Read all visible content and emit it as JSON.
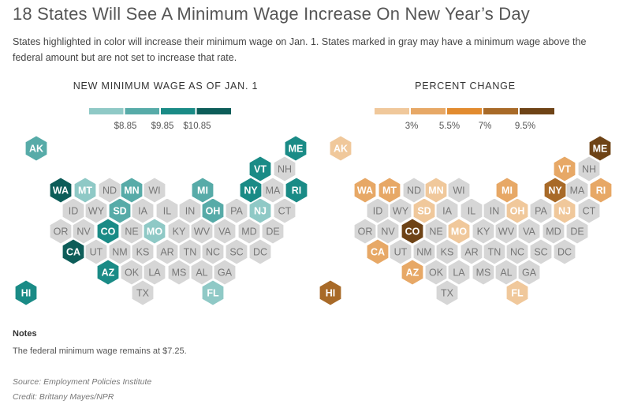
{
  "title": "18 States Will See A Minimum Wage Increase On New Year’s Day",
  "subtitle": "States highlighted in color will increase their minimum wage on Jan. 1. States marked in gray may have a minimum wage above the federal amount but are not set to increase that rate.",
  "notes_heading": "Notes",
  "notes_text": "The federal minimum wage remains at $7.25.",
  "source": "Source: Employment Policies Institute",
  "credit": "Credit: Brittany Mayes/NPR",
  "colors": {
    "no_change": "#d6d6d6",
    "no_change_text": "#777777",
    "wage_scale": [
      "#8fc9c6",
      "#57aba8",
      "#1a8b86",
      "#0d5d59"
    ],
    "pct_scale": [
      "#f0c89b",
      "#e7a866",
      "#e28b2f",
      "#a86a28",
      "#6e4316"
    ]
  },
  "chart_data": [
    {
      "type": "heatmap",
      "title": "NEW MINIMUM WAGE AS OF JAN. 1",
      "legend": {
        "tick_labels": [
          "$8.85",
          "$9.85",
          "$10.85"
        ]
      },
      "states": [
        {
          "abbr": "AK",
          "bin": 1
        },
        {
          "abbr": "ME",
          "bin": 2
        },
        {
          "abbr": "VT",
          "bin": 2
        },
        {
          "abbr": "NH",
          "bin": null
        },
        {
          "abbr": "WA",
          "bin": 3
        },
        {
          "abbr": "MT",
          "bin": 0
        },
        {
          "abbr": "ND",
          "bin": null
        },
        {
          "abbr": "MN",
          "bin": 1
        },
        {
          "abbr": "WI",
          "bin": null
        },
        {
          "abbr": "MI",
          "bin": 1
        },
        {
          "abbr": "NY",
          "bin": 2
        },
        {
          "abbr": "MA",
          "bin": null
        },
        {
          "abbr": "RI",
          "bin": 2
        },
        {
          "abbr": "ID",
          "bin": null
        },
        {
          "abbr": "WY",
          "bin": null
        },
        {
          "abbr": "SD",
          "bin": 1
        },
        {
          "abbr": "IA",
          "bin": null
        },
        {
          "abbr": "IL",
          "bin": null
        },
        {
          "abbr": "IN",
          "bin": null
        },
        {
          "abbr": "OH",
          "bin": 1
        },
        {
          "abbr": "PA",
          "bin": null
        },
        {
          "abbr": "NJ",
          "bin": 0
        },
        {
          "abbr": "CT",
          "bin": null
        },
        {
          "abbr": "OR",
          "bin": null
        },
        {
          "abbr": "NV",
          "bin": null
        },
        {
          "abbr": "CO",
          "bin": 2
        },
        {
          "abbr": "NE",
          "bin": null
        },
        {
          "abbr": "MO",
          "bin": 0
        },
        {
          "abbr": "KY",
          "bin": null
        },
        {
          "abbr": "WV",
          "bin": null
        },
        {
          "abbr": "VA",
          "bin": null
        },
        {
          "abbr": "MD",
          "bin": null
        },
        {
          "abbr": "DE",
          "bin": null
        },
        {
          "abbr": "CA",
          "bin": 3
        },
        {
          "abbr": "UT",
          "bin": null
        },
        {
          "abbr": "NM",
          "bin": null
        },
        {
          "abbr": "KS",
          "bin": null
        },
        {
          "abbr": "AR",
          "bin": null
        },
        {
          "abbr": "TN",
          "bin": null
        },
        {
          "abbr": "NC",
          "bin": null
        },
        {
          "abbr": "SC",
          "bin": null
        },
        {
          "abbr": "DC",
          "bin": null
        },
        {
          "abbr": "AZ",
          "bin": 2
        },
        {
          "abbr": "OK",
          "bin": null
        },
        {
          "abbr": "LA",
          "bin": null
        },
        {
          "abbr": "MS",
          "bin": null
        },
        {
          "abbr": "AL",
          "bin": null
        },
        {
          "abbr": "GA",
          "bin": null
        },
        {
          "abbr": "HI",
          "bin": 2
        },
        {
          "abbr": "TX",
          "bin": null
        },
        {
          "abbr": "FL",
          "bin": 0
        }
      ]
    },
    {
      "type": "heatmap",
      "title": "PERCENT CHANGE",
      "legend": {
        "tick_labels": [
          "3%",
          "5.5%",
          "7%",
          "9.5%"
        ]
      },
      "states": [
        {
          "abbr": "AK",
          "bin": 0
        },
        {
          "abbr": "ME",
          "bin": 4
        },
        {
          "abbr": "VT",
          "bin": 1
        },
        {
          "abbr": "NH",
          "bin": null
        },
        {
          "abbr": "WA",
          "bin": 1
        },
        {
          "abbr": "MT",
          "bin": 1
        },
        {
          "abbr": "ND",
          "bin": null
        },
        {
          "abbr": "MN",
          "bin": 0
        },
        {
          "abbr": "WI",
          "bin": null
        },
        {
          "abbr": "MI",
          "bin": 1
        },
        {
          "abbr": "NY",
          "bin": 3
        },
        {
          "abbr": "MA",
          "bin": null
        },
        {
          "abbr": "RI",
          "bin": 1
        },
        {
          "abbr": "ID",
          "bin": null
        },
        {
          "abbr": "WY",
          "bin": null
        },
        {
          "abbr": "SD",
          "bin": 0
        },
        {
          "abbr": "IA",
          "bin": null
        },
        {
          "abbr": "IL",
          "bin": null
        },
        {
          "abbr": "IN",
          "bin": null
        },
        {
          "abbr": "OH",
          "bin": 0
        },
        {
          "abbr": "PA",
          "bin": null
        },
        {
          "abbr": "NJ",
          "bin": 0
        },
        {
          "abbr": "CT",
          "bin": null
        },
        {
          "abbr": "OR",
          "bin": null
        },
        {
          "abbr": "NV",
          "bin": null
        },
        {
          "abbr": "CO",
          "bin": 4
        },
        {
          "abbr": "NE",
          "bin": null
        },
        {
          "abbr": "MO",
          "bin": 0
        },
        {
          "abbr": "KY",
          "bin": null
        },
        {
          "abbr": "WV",
          "bin": null
        },
        {
          "abbr": "VA",
          "bin": null
        },
        {
          "abbr": "MD",
          "bin": null
        },
        {
          "abbr": "DE",
          "bin": null
        },
        {
          "abbr": "CA",
          "bin": 1
        },
        {
          "abbr": "UT",
          "bin": null
        },
        {
          "abbr": "NM",
          "bin": null
        },
        {
          "abbr": "KS",
          "bin": null
        },
        {
          "abbr": "AR",
          "bin": null
        },
        {
          "abbr": "TN",
          "bin": null
        },
        {
          "abbr": "NC",
          "bin": null
        },
        {
          "abbr": "SC",
          "bin": null
        },
        {
          "abbr": "DC",
          "bin": null
        },
        {
          "abbr": "AZ",
          "bin": 1
        },
        {
          "abbr": "OK",
          "bin": null
        },
        {
          "abbr": "LA",
          "bin": null
        },
        {
          "abbr": "MS",
          "bin": null
        },
        {
          "abbr": "AL",
          "bin": null
        },
        {
          "abbr": "GA",
          "bin": null
        },
        {
          "abbr": "HI",
          "bin": 3
        },
        {
          "abbr": "TX",
          "bin": null
        },
        {
          "abbr": "FL",
          "bin": 0
        }
      ]
    }
  ]
}
